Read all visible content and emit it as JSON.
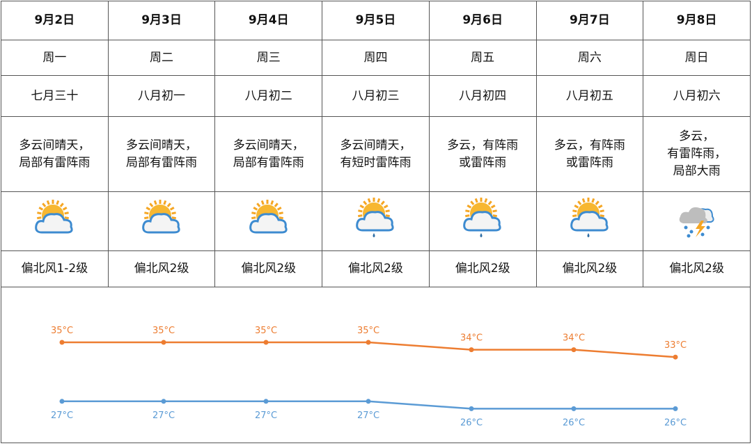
{
  "days": [
    {
      "date": "9月2日",
      "weekday": "周一",
      "lunar": "七月三十",
      "weather": "多云间晴天，\n局部有雷阵雨",
      "icon": "partly-cloudy-icon",
      "wind": "偏北风1-2级"
    },
    {
      "date": "9月3日",
      "weekday": "周二",
      "lunar": "八月初一",
      "weather": "多云间晴天，\n局部有雷阵雨",
      "icon": "partly-cloudy-icon",
      "wind": "偏北风2级"
    },
    {
      "date": "9月4日",
      "weekday": "周三",
      "lunar": "八月初二",
      "weather": "多云间晴天，\n局部有雷阵雨",
      "icon": "partly-cloudy-icon",
      "wind": "偏北风2级"
    },
    {
      "date": "9月5日",
      "weekday": "周四",
      "lunar": "八月初三",
      "weather": "多云间晴天，\n有短时雷阵雨",
      "icon": "partly-cloudy-rain-icon",
      "wind": "偏北风2级"
    },
    {
      "date": "9月6日",
      "weekday": "周五",
      "lunar": "八月初四",
      "weather": "多云，有阵雨\n或雷阵雨",
      "icon": "partly-cloudy-rain-icon",
      "wind": "偏北风2级"
    },
    {
      "date": "9月7日",
      "weekday": "周六",
      "lunar": "八月初五",
      "weather": "多云，有阵雨\n或雷阵雨",
      "icon": "partly-cloudy-rain-icon",
      "wind": "偏北风2级"
    },
    {
      "date": "9月8日",
      "weekday": "周日",
      "lunar": "八月初六",
      "weather": "多云，\n有雷阵雨，\n局部大雨",
      "icon": "thunderstorm-icon",
      "wind": "偏北风2级"
    }
  ],
  "chart_data": {
    "type": "line",
    "x": [
      "9月2日",
      "9月3日",
      "9月4日",
      "9月5日",
      "9月6日",
      "9月7日",
      "9月8日"
    ],
    "series": [
      {
        "key": "high",
        "values": [
          35,
          35,
          35,
          35,
          34,
          34,
          33
        ],
        "color": "#ed7d31"
      },
      {
        "key": "low",
        "values": [
          27,
          27,
          27,
          27,
          26,
          26,
          26
        ],
        "color": "#5b9bd5"
      }
    ],
    "unit": "°C"
  }
}
